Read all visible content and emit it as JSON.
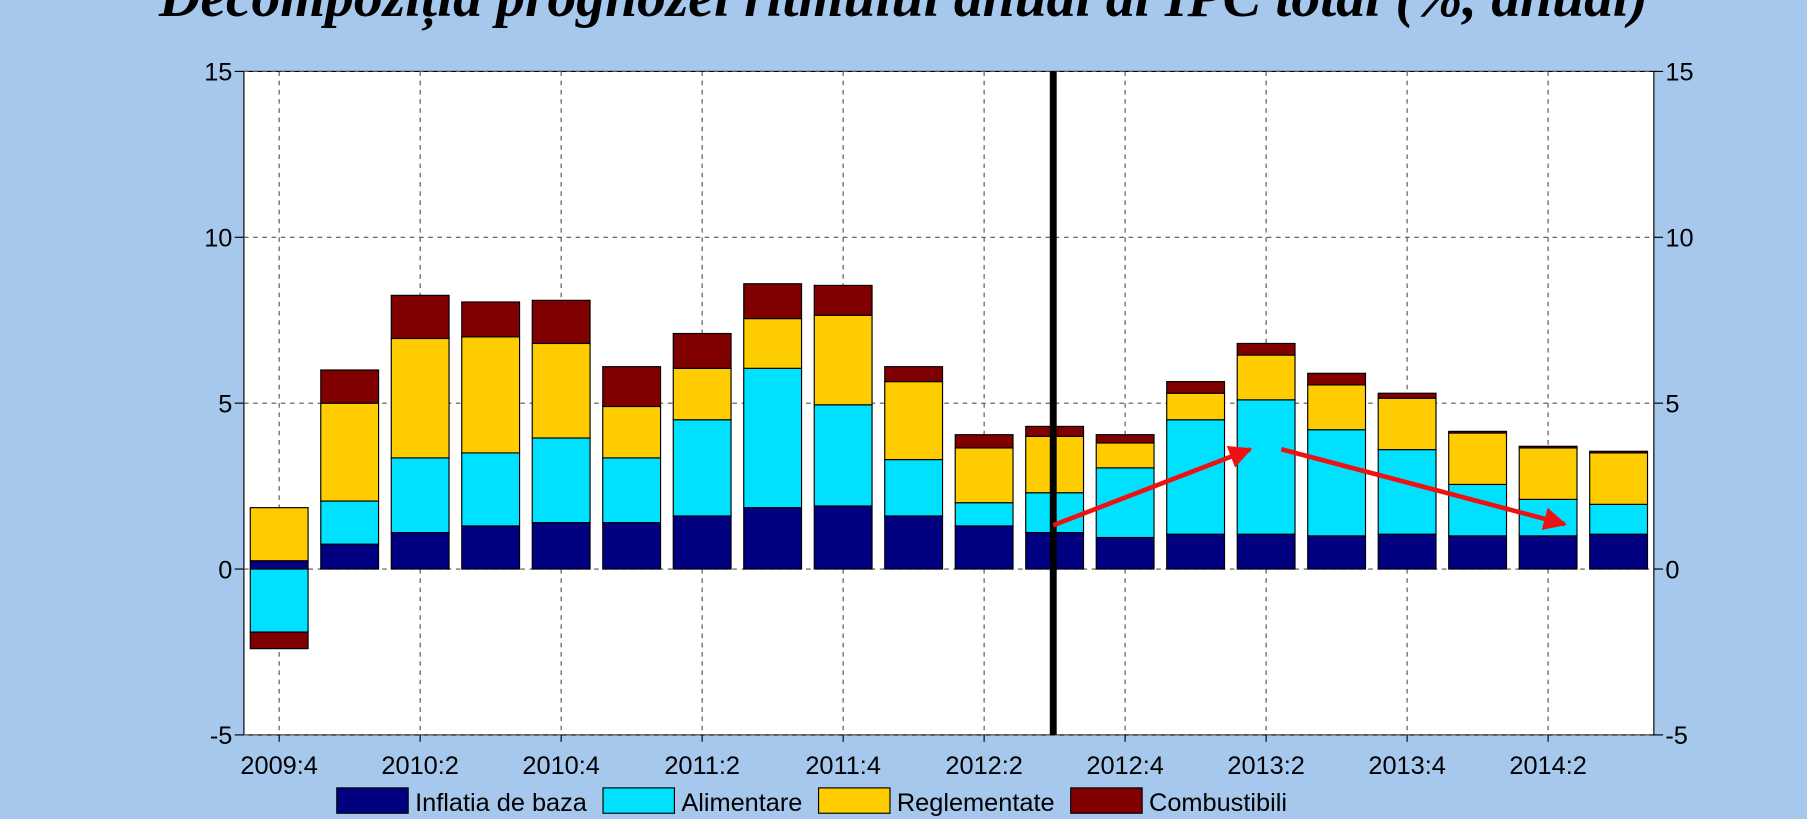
{
  "chart_data": {
    "type": "bar",
    "stacked": true,
    "title": "Decompoziția prognozei ritmului anual al IPC total (%, anual)",
    "categories": [
      "2009:4",
      null,
      "2010:2",
      null,
      "2010:4",
      null,
      "2011:2",
      null,
      "2011:4",
      null,
      "2012:2",
      null,
      "2012:4",
      null,
      "2013:2",
      null,
      "2013:4",
      null,
      "2014:2",
      null
    ],
    "series": [
      {
        "name": "Inflatia de baza",
        "color": "#000080",
        "values": [
          0.25,
          0.75,
          1.1,
          1.3,
          1.4,
          1.4,
          1.6,
          1.85,
          1.9,
          1.6,
          1.3,
          1.1,
          0.95,
          1.05,
          1.05,
          1.0,
          1.05,
          1.0,
          1.0,
          1.05
        ]
      },
      {
        "name": "Alimentare",
        "color": "#00e0ff",
        "values": [
          -1.9,
          1.3,
          2.25,
          2.2,
          2.55,
          1.95,
          2.9,
          4.2,
          3.05,
          1.7,
          0.7,
          1.2,
          2.1,
          3.45,
          4.05,
          3.2,
          2.55,
          1.55,
          1.1,
          0.9
        ]
      },
      {
        "name": "Reglementate",
        "color": "#ffcc00",
        "values": [
          1.6,
          2.95,
          3.6,
          3.5,
          2.85,
          1.55,
          1.55,
          1.5,
          2.7,
          2.35,
          1.65,
          1.7,
          0.75,
          0.8,
          1.35,
          1.35,
          1.55,
          1.55,
          1.55,
          1.55
        ]
      },
      {
        "name": "Combustibili",
        "color": "#800000",
        "values": [
          -0.5,
          1.0,
          1.3,
          1.05,
          1.3,
          1.2,
          1.05,
          1.05,
          0.9,
          0.45,
          0.4,
          0.3,
          0.25,
          0.35,
          0.35,
          0.35,
          0.15,
          0.05,
          0.05,
          0.05
        ]
      }
    ],
    "ylim": [
      -5,
      15
    ],
    "yticks": [
      -5,
      0,
      5,
      10,
      15
    ],
    "grid": true
  }
}
